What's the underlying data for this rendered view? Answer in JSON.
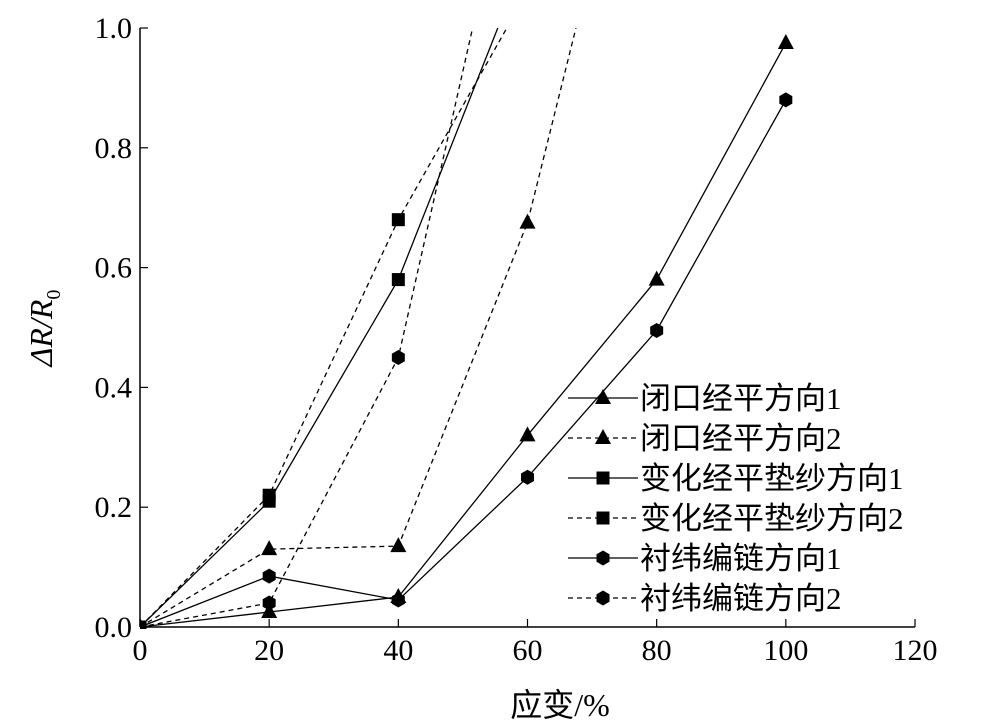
{
  "chart_data": {
    "type": "line",
    "title": "",
    "xlabel": "应变/%",
    "ylabel": "ΔR/R0",
    "xlim": [
      0,
      120
    ],
    "ylim": [
      0,
      1.0
    ],
    "xticks": [
      "0",
      "20",
      "40",
      "60",
      "80",
      "100",
      "120"
    ],
    "yticks": [
      "0.0",
      "0.2",
      "0.4",
      "0.6",
      "0.8",
      "1.0"
    ],
    "grid": false,
    "legend_position": "right",
    "series": [
      {
        "name": "闭口经平方向1",
        "line": "solid",
        "marker": "triangle",
        "x": [
          0,
          20,
          40,
          60,
          80,
          100
        ],
        "y": [
          0,
          0.025,
          0.05,
          0.32,
          0.58,
          0.975
        ]
      },
      {
        "name": "闭口经平方向2",
        "line": "dashed",
        "marker": "triangle",
        "x": [
          0,
          20,
          40,
          60,
          67.5
        ],
        "y": [
          0,
          0.13,
          0.135,
          0.675,
          1.0
        ]
      },
      {
        "name": "变化经平垫纱方向1",
        "line": "solid",
        "marker": "square",
        "x": [
          0,
          20,
          40,
          55.4
        ],
        "y": [
          0,
          0.21,
          0.58,
          1.0
        ]
      },
      {
        "name": "变化经平垫纱方向2",
        "line": "dashed",
        "marker": "square",
        "x": [
          0,
          20,
          40,
          56.8
        ],
        "y": [
          0,
          0.22,
          0.68,
          1.0
        ]
      },
      {
        "name": "衬纬编链方向1",
        "line": "solid",
        "marker": "hexagon",
        "x": [
          0,
          20,
          40,
          60,
          80,
          100
        ],
        "y": [
          0,
          0.085,
          0.045,
          0.25,
          0.495,
          0.88
        ]
      },
      {
        "name": "衬纬编链方向2",
        "line": "dashed",
        "marker": "hexagon",
        "x": [
          0,
          20,
          40,
          51.5
        ],
        "y": [
          0,
          0.04,
          0.45,
          1.0
        ]
      }
    ]
  }
}
